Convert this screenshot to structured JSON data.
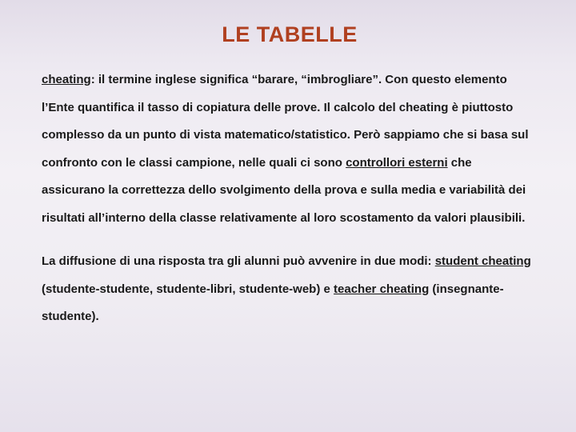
{
  "title_text": "LE TABELLE",
  "title_color": "#b04020",
  "title_fontsize": 27,
  "body_fontsize": 15,
  "body_color": "#1a1a1a",
  "line_height": 2.3,
  "background_gradient": [
    "#e2dce8",
    "#ede9f1",
    "#f3f0f5",
    "#efecf2",
    "#e6e1ec"
  ],
  "para1": {
    "t1": "cheating",
    "t2": ": il termine inglese significa “barare, “imbrogliare”. Con questo elemento l’Ente quantifica il tasso di copiatura delle prove. Il calcolo del cheating è piuttosto complesso da un punto di vista matematico/statistico. Però sappiamo che si basa sul confronto con le classi campione, nelle quali ci sono ",
    "t3": "controllori esterni",
    "t4": " che assicurano la correttezza dello svolgimento della prova e sulla media e variabilità dei risultati all’interno della classe relativamente al loro scostamento da valori plausibili."
  },
  "para2": {
    "t1": "La diffusione di una risposta tra gli alunni può avvenire in due modi: ",
    "t2": "student cheating",
    "t3": " (studente-studente, studente-libri, studente-web) e ",
    "t4": "teacher cheating",
    "t5": " (insegnante-studente)."
  }
}
